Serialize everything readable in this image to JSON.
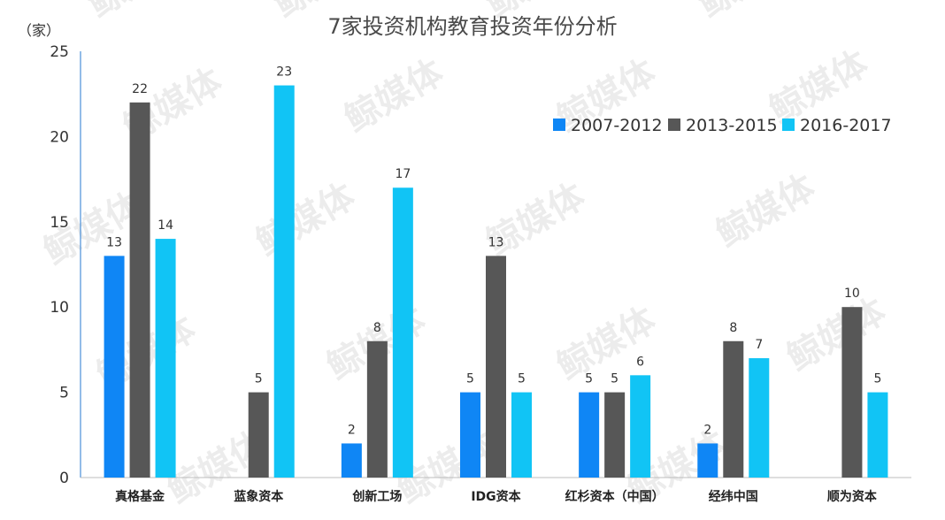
{
  "chart_data": {
    "type": "bar",
    "title": "7家投资机构教育投资年份分析",
    "ylabel": "（家）",
    "ylim": [
      0,
      25
    ],
    "yticks": [
      0,
      5,
      10,
      15,
      20,
      25
    ],
    "grid": false,
    "legend_position": "top-right",
    "categories": [
      "真格基金",
      "蓝象资本",
      "创新工场",
      "IDG资本",
      "红杉资本（中国）",
      "经纬中国",
      "顺为资本"
    ],
    "series": [
      {
        "name": "2007-2012",
        "color": "#0f86f5",
        "values": [
          13,
          null,
          2,
          5,
          5,
          2,
          null
        ]
      },
      {
        "name": "2013-2015",
        "color": "#575757",
        "values": [
          22,
          5,
          8,
          13,
          5,
          8,
          10
        ]
      },
      {
        "name": "2016-2017",
        "color": "#11c4f5",
        "values": [
          14,
          23,
          17,
          5,
          6,
          7,
          5
        ]
      }
    ]
  },
  "watermark": "鲸媒体",
  "colors": {
    "axis": "#4a90d9",
    "text": "#333333"
  }
}
